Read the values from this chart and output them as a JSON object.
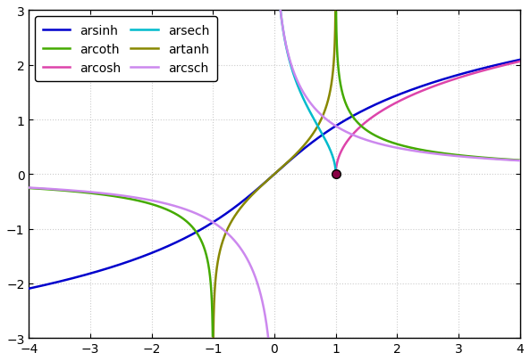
{
  "title": "",
  "xlim": [
    -4,
    4
  ],
  "ylim": [
    -3,
    3
  ],
  "xticks": [
    -4,
    -3,
    -2,
    -1,
    0,
    1,
    2,
    3,
    4
  ],
  "yticks": [
    -3,
    -2,
    -1,
    0,
    1,
    2,
    3
  ],
  "plot_bg": "#ffffff",
  "fig_bg": "#ffffff",
  "grid_color": "#cccccc",
  "grid_linestyle": ":",
  "colors": {
    "arsinh": "#0000cc",
    "arcosh": "#dd44aa",
    "artanh": "#888800",
    "arcoth": "#44aa00",
    "arsech": "#00bbcc",
    "arcsch": "#cc88ee"
  },
  "linewidth": 1.8,
  "point": [
    1,
    0
  ],
  "point_color": "#880044",
  "point_edgecolor": "#000000",
  "point_size": 7
}
